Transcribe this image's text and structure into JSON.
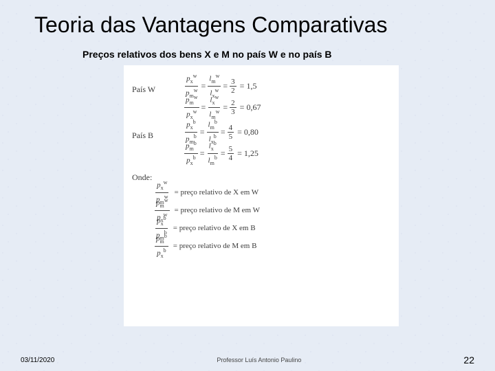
{
  "title": "Teoria das Vantagens Comparativas",
  "subtitle": "Preços relativos dos bens X e M no país W e no país B",
  "figure": {
    "countryW": {
      "label": "País W",
      "eq1": {
        "lhs_num": "p_x^w",
        "lhs_den": "p_m^w",
        "mid_num": "l_m^w",
        "mid_den": "l_x^w",
        "rhs_num": "3",
        "rhs_den": "2",
        "val": "1,5"
      },
      "eq2": {
        "lhs_num": "p_m^w",
        "lhs_den": "p_x^w",
        "mid_num": "l_x^w",
        "mid_den": "l_m^w",
        "rhs_num": "2",
        "rhs_den": "3",
        "val": "0,67"
      }
    },
    "countryB": {
      "label": "País B",
      "eq1": {
        "lhs_num": "p_x^b",
        "lhs_den": "p_m^b",
        "mid_num": "l_m^b",
        "mid_den": "l_x^b",
        "rhs_num": "4",
        "rhs_den": "5",
        "val": "0,80"
      },
      "eq2": {
        "lhs_num": "p_m^b",
        "lhs_den": "p_x^b",
        "mid_num": "l_x^b",
        "mid_den": "l_m^b",
        "rhs_num": "5",
        "rhs_den": "4",
        "val": "1,25"
      }
    },
    "onde_label": "Onde:",
    "defs": [
      {
        "num": "p_x^w",
        "den": "p_m^w",
        "text": "= preço relativo de X em W"
      },
      {
        "num": "p_m^w",
        "den": "p_x^w",
        "text": "= preço relativo de M em W"
      },
      {
        "num": "p_x^b",
        "den": "p_m^b",
        "text": "= preço relativo de X em B"
      },
      {
        "num": "p_m^b",
        "den": "p_x^b",
        "text": "= preço relativo de M em B"
      }
    ]
  },
  "footer": {
    "date": "03/11/2020",
    "author": "Professor Luís Antonio Paulino",
    "page": "22"
  },
  "colors": {
    "background": "#e6ecf5",
    "text": "#000000",
    "figure_bg": "#ffffff",
    "figure_text": "#3a3a3a"
  }
}
